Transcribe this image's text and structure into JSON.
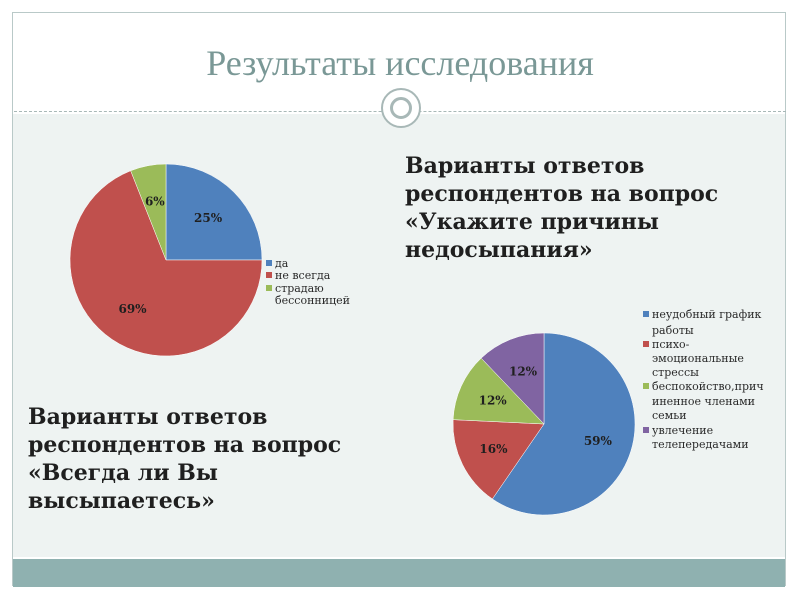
{
  "slide": {
    "title": "Результаты исследования",
    "caption_right": "Варианты ответов\nреспондентов на вопрос\n«Укажите причины\nнедосыпания»",
    "caption_left": "Варианты ответов\nреспондентов на вопрос\n«Всегда ли Вы\nвысыпаетесь»"
  },
  "chart_data": [
    {
      "type": "pie",
      "title": "",
      "slices": [
        {
          "label": "да",
          "value": 25,
          "display": "25%",
          "color": "#4f81bd"
        },
        {
          "label": "не всегда",
          "value": 69,
          "display": "69%",
          "color": "#c0504d"
        },
        {
          "label": "страдаю бессонницей",
          "value": 6,
          "display": "6%",
          "color": "#9bbb59"
        }
      ],
      "legend": [
        "да",
        "не всегда",
        "страдаю",
        "бессонницей"
      ],
      "legend_position": "right"
    },
    {
      "type": "pie",
      "title": "",
      "slices": [
        {
          "label": "неудобный график работы",
          "value": 59,
          "display": "59%",
          "color": "#4f81bd"
        },
        {
          "label": "психо-эмоциональные стрессы",
          "value": 16,
          "display": "16%",
          "color": "#c0504d"
        },
        {
          "label": "беспокойство,причиненное членами семьи",
          "value": 12,
          "display": "12%",
          "color": "#9bbb59"
        },
        {
          "label": "увлечение телепередачами",
          "value": 12,
          "display": "12%",
          "color": "#8064a2"
        }
      ],
      "legend": [
        "неудобный график",
        "работы",
        "психо-",
        "эмоциональные",
        "стрессы",
        "беспокойство,прич",
        "иненное членами",
        "семьи",
        "увлечение",
        "телепередачами"
      ],
      "legend_position": "right"
    }
  ]
}
